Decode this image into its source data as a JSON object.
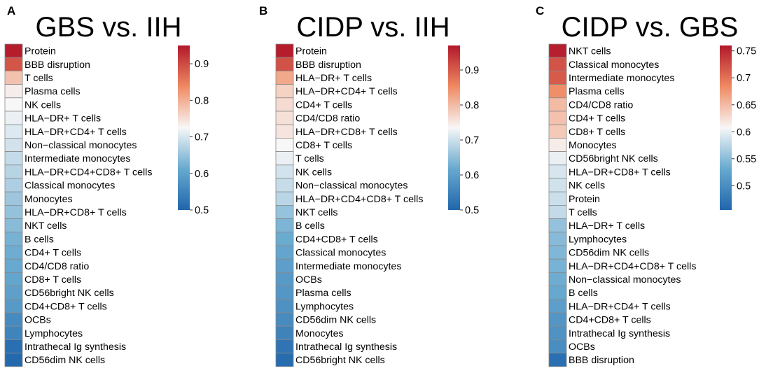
{
  "chart_data": [
    {
      "type": "heatmap",
      "panel_label": "A",
      "title": "GBS vs. IIH",
      "colorbar": {
        "min": 0.5,
        "max": 0.95,
        "ticks": [
          0.5,
          0.6,
          0.7,
          0.8,
          0.9
        ]
      },
      "rows": [
        {
          "label": "Protein",
          "value": 0.945
        },
        {
          "label": "BBB disruption",
          "value": 0.89
        },
        {
          "label": "T cells",
          "value": 0.78
        },
        {
          "label": "Plasma cells",
          "value": 0.735
        },
        {
          "label": "NK cells",
          "value": 0.725
        },
        {
          "label": "HLA−DR+ T cells",
          "value": 0.715
        },
        {
          "label": "HLA−DR+CD4+ T cells",
          "value": 0.705
        },
        {
          "label": "Non−classical monocytes",
          "value": 0.695
        },
        {
          "label": "Intermediate monocytes",
          "value": 0.685
        },
        {
          "label": "HLA−DR+CD4+CD8+ T cells",
          "value": 0.675
        },
        {
          "label": "Classical monocytes",
          "value": 0.668
        },
        {
          "label": "Monocytes",
          "value": 0.655
        },
        {
          "label": "HLA−DR+CD8+ T cells",
          "value": 0.648
        },
        {
          "label": "NKT cells",
          "value": 0.638
        },
        {
          "label": "B cells",
          "value": 0.625
        },
        {
          "label": "CD4+ T cells",
          "value": 0.618
        },
        {
          "label": "CD4/CD8 ratio",
          "value": 0.612
        },
        {
          "label": "CD8+ T cells",
          "value": 0.605
        },
        {
          "label": "CD56bright NK cells",
          "value": 0.598
        },
        {
          "label": "CD4+CD8+ T cells",
          "value": 0.588
        },
        {
          "label": "OCBs",
          "value": 0.56
        },
        {
          "label": "Lymphocytes",
          "value": 0.55
        },
        {
          "label": "Intrathecal Ig synthesis",
          "value": 0.515
        },
        {
          "label": "CD56dim NK cells",
          "value": 0.505
        }
      ]
    },
    {
      "type": "heatmap",
      "panel_label": "B",
      "title": "CIDP vs. IIH",
      "colorbar": {
        "min": 0.5,
        "max": 0.97,
        "ticks": [
          0.5,
          0.6,
          0.7,
          0.8,
          0.9
        ]
      },
      "rows": [
        {
          "label": "Protein",
          "value": 0.965
        },
        {
          "label": "BBB disruption",
          "value": 0.91
        },
        {
          "label": "HLA−DR+ T cells",
          "value": 0.82
        },
        {
          "label": "HLA−DR+CD4+ T cells",
          "value": 0.775
        },
        {
          "label": "CD4+ T cells",
          "value": 0.765
        },
        {
          "label": "CD4/CD8 ratio",
          "value": 0.76
        },
        {
          "label": "HLA−DR+CD8+ T cells",
          "value": 0.755
        },
        {
          "label": "CD8+ T cells",
          "value": 0.735
        },
        {
          "label": "T cells",
          "value": 0.725
        },
        {
          "label": "NK cells",
          "value": 0.705
        },
        {
          "label": "Non−classical monocytes",
          "value": 0.695
        },
        {
          "label": "HLA−DR+CD4+CD8+ T cells",
          "value": 0.685
        },
        {
          "label": "NKT cells",
          "value": 0.655
        },
        {
          "label": "B cells",
          "value": 0.635
        },
        {
          "label": "CD4+CD8+ T cells",
          "value": 0.62
        },
        {
          "label": "Classical monocytes",
          "value": 0.61
        },
        {
          "label": "Intermediate monocytes",
          "value": 0.6
        },
        {
          "label": "OCBs",
          "value": 0.59
        },
        {
          "label": "Plasma cells",
          "value": 0.585
        },
        {
          "label": "Lymphocytes",
          "value": 0.575
        },
        {
          "label": "CD56dim NK cells",
          "value": 0.565
        },
        {
          "label": "Monocytes",
          "value": 0.55
        },
        {
          "label": "Intrathecal Ig synthesis",
          "value": 0.525
        },
        {
          "label": "CD56bright NK cells",
          "value": 0.51
        }
      ]
    },
    {
      "type": "heatmap",
      "panel_label": "C",
      "title": "CIDP vs. GBS",
      "colorbar": {
        "min": 0.455,
        "max": 0.76,
        "ticks": [
          0.5,
          0.55,
          0.6,
          0.65,
          0.7,
          0.75
        ]
      },
      "rows": [
        {
          "label": "NKT cells",
          "value": 0.755
        },
        {
          "label": "Classical monocytes",
          "value": 0.72
        },
        {
          "label": "Intermediate monocytes",
          "value": 0.715
        },
        {
          "label": "Plasma cells",
          "value": 0.68
        },
        {
          "label": "CD4/CD8 ratio",
          "value": 0.65
        },
        {
          "label": "CD4+ T cells",
          "value": 0.645
        },
        {
          "label": "CD8+ T cells",
          "value": 0.64
        },
        {
          "label": "Monocytes",
          "value": 0.615
        },
        {
          "label": "CD56bright NK cells",
          "value": 0.6
        },
        {
          "label": "HLA−DR+CD8+ T cells",
          "value": 0.59
        },
        {
          "label": "NK cells",
          "value": 0.587
        },
        {
          "label": "Protein",
          "value": 0.584
        },
        {
          "label": "T cells",
          "value": 0.58
        },
        {
          "label": "HLA−DR+ T cells",
          "value": 0.555
        },
        {
          "label": "Lymphocytes",
          "value": 0.548
        },
        {
          "label": "CD56dim NK cells",
          "value": 0.545
        },
        {
          "label": "HLA−DR+CD4+CD8+ T cells",
          "value": 0.54
        },
        {
          "label": "Non−classical monocytes",
          "value": 0.535
        },
        {
          "label": "B cells",
          "value": 0.53
        },
        {
          "label": "HLA−DR+CD4+ T cells",
          "value": 0.52
        },
        {
          "label": "CD4+CD8+ T cells",
          "value": 0.51
        },
        {
          "label": "Intrathecal Ig synthesis",
          "value": 0.505
        },
        {
          "label": "OCBs",
          "value": 0.5
        },
        {
          "label": "BBB disruption",
          "value": 0.465
        }
      ]
    }
  ]
}
